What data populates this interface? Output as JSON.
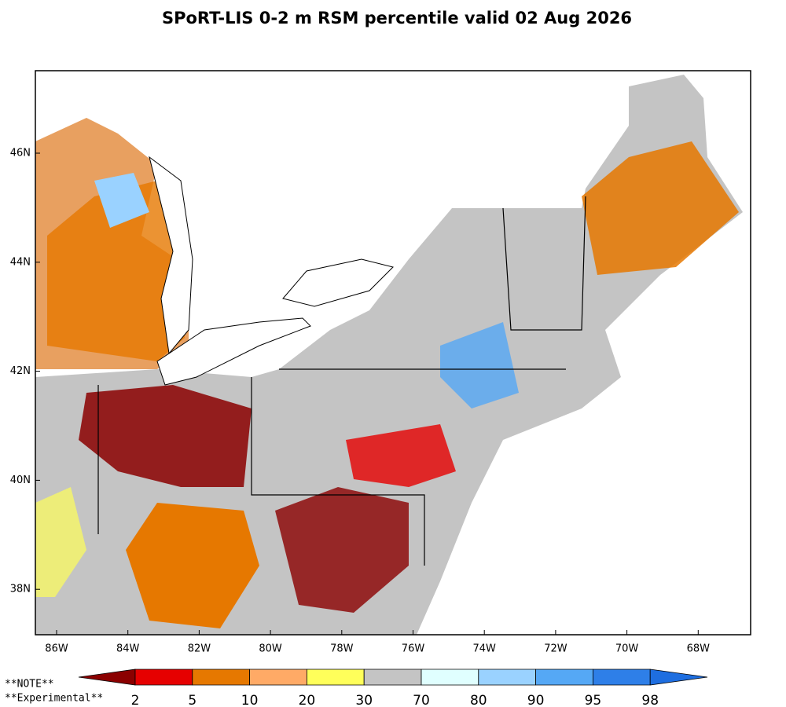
{
  "title": "SPoRT-LIS 0-2 m RSM percentile valid 02 Aug 2026",
  "map": {
    "lat_labels": [
      "46N",
      "44N",
      "42N",
      "40N",
      "38N"
    ],
    "lon_labels": [
      "86W",
      "84W",
      "82W",
      "80W",
      "78W",
      "76W",
      "74W",
      "72W",
      "70W",
      "68W"
    ]
  },
  "colorbar": {
    "labels": [
      2,
      5,
      10,
      20,
      30,
      70,
      80,
      90,
      95,
      98
    ],
    "colors": [
      "#8b0000",
      "#e60000",
      "#e67800",
      "#ffaa66",
      "#ffff5a",
      "#c4c4c4",
      "#e0ffff",
      "#9ad2ff",
      "#55a8f5",
      "#2e7fe8",
      "#1e6ee0"
    ]
  },
  "notes": [
    "**NOTE**",
    "**Experimental**"
  ]
}
